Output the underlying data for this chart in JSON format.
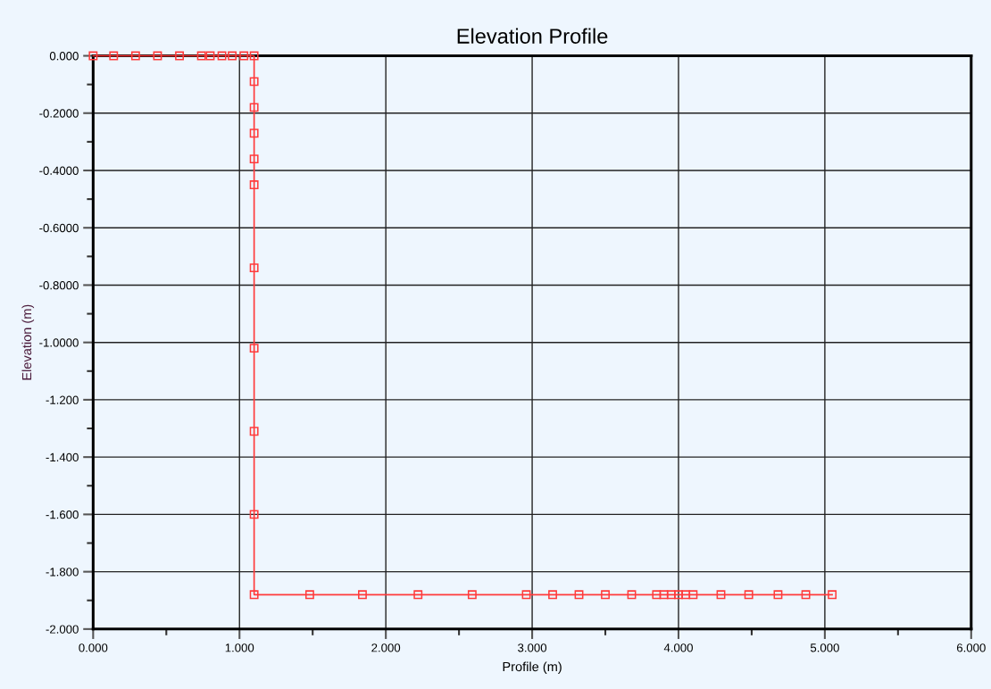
{
  "chart_data": {
    "type": "line",
    "title": "Elevation Profile",
    "xlabel": "Profile (m)",
    "ylabel": "Elevation (m)",
    "series": [
      {
        "color": "#ff3b3b",
        "x": [
          0.0,
          0.14,
          0.29,
          0.44,
          0.59,
          0.74,
          0.8,
          0.88,
          0.95,
          1.03,
          1.1,
          1.1,
          1.1,
          1.1,
          1.1,
          1.1,
          1.1,
          1.1,
          1.1,
          1.1,
          1.1,
          1.48,
          1.84,
          2.22,
          2.59,
          2.96,
          3.14,
          3.32,
          3.5,
          3.68,
          3.85,
          3.9,
          3.95,
          4.0,
          4.05,
          4.1,
          4.29,
          4.48,
          4.68,
          4.87,
          5.05
        ],
        "values": [
          0.0,
          0.0,
          0.0,
          0.0,
          0.0,
          0.0,
          0.0,
          0.0,
          0.0,
          0.0,
          0.0,
          -0.09,
          -0.18,
          -0.27,
          -0.36,
          -0.45,
          -0.74,
          -1.02,
          -1.31,
          -1.6,
          -1.88,
          -1.88,
          -1.88,
          -1.88,
          -1.88,
          -1.88,
          -1.88,
          -1.88,
          -1.88,
          -1.88,
          -1.88,
          -1.88,
          -1.88,
          -1.88,
          -1.88,
          -1.88,
          -1.88,
          -1.88,
          -1.88,
          -1.88,
          -1.88
        ]
      }
    ],
    "xlim": [
      0,
      6
    ],
    "ylim": [
      -2,
      0
    ],
    "xticks": [
      {
        "value": 0,
        "label": "0.000"
      },
      {
        "value": 0.5,
        "label": null
      },
      {
        "value": 1,
        "label": "1.000"
      },
      {
        "value": 1.5,
        "label": null
      },
      {
        "value": 2,
        "label": "2.000"
      },
      {
        "value": 2.5,
        "label": null
      },
      {
        "value": 3,
        "label": "3.000"
      },
      {
        "value": 3.5,
        "label": null
      },
      {
        "value": 4,
        "label": "4.000"
      },
      {
        "value": 4.5,
        "label": null
      },
      {
        "value": 5,
        "label": "5.000"
      },
      {
        "value": 5.5,
        "label": null
      },
      {
        "value": 6,
        "label": "6.000"
      }
    ],
    "yticks": [
      {
        "value": 0,
        "label": "0.000"
      },
      {
        "value": -0.1,
        "label": null
      },
      {
        "value": -0.2,
        "label": "-0.2000"
      },
      {
        "value": -0.3,
        "label": null
      },
      {
        "value": -0.4,
        "label": "-0.4000"
      },
      {
        "value": -0.5,
        "label": null
      },
      {
        "value": -0.6,
        "label": "-0.6000"
      },
      {
        "value": -0.7,
        "label": null
      },
      {
        "value": -0.8,
        "label": "-0.8000"
      },
      {
        "value": -0.9,
        "label": null
      },
      {
        "value": -1.0,
        "label": "-1.0000"
      },
      {
        "value": -1.1,
        "label": null
      },
      {
        "value": -1.2,
        "label": "-1.200"
      },
      {
        "value": -1.3,
        "label": null
      },
      {
        "value": -1.4,
        "label": "-1.400"
      },
      {
        "value": -1.5,
        "label": null
      },
      {
        "value": -1.6,
        "label": "-1.600"
      },
      {
        "value": -1.7,
        "label": null
      },
      {
        "value": -1.8,
        "label": "-1.800"
      },
      {
        "value": -1.9,
        "label": null
      },
      {
        "value": -2.0,
        "label": "-2.000"
      }
    ],
    "grid": true,
    "marker": "square",
    "line_style": "solid"
  }
}
